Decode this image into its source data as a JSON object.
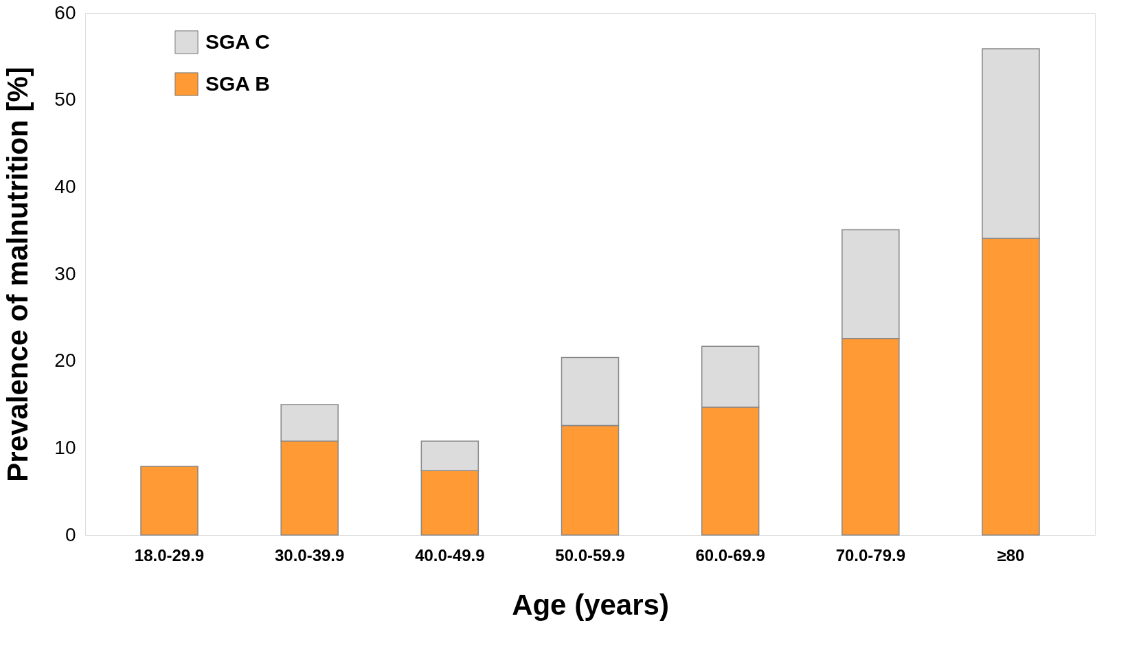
{
  "chart_data": {
    "type": "bar",
    "xlabel": "Age (years)",
    "ylabel": "Prevalence of malnutrition [%]",
    "categories": [
      "18.0-29.9",
      "30.0-39.9",
      "40.0-49.9",
      "50.0-59.9",
      "60.0-69.9",
      "70.0-79.9",
      "≥80"
    ],
    "stacked": true,
    "series": [
      {
        "name": "SGA B",
        "color": "#ff9a35",
        "values": [
          7.9,
          10.8,
          7.4,
          12.6,
          14.7,
          22.6,
          34.1
        ]
      },
      {
        "name": "SGA C",
        "color": "#dcdcdc",
        "values": [
          null,
          4.2,
          3.4,
          7.8,
          7.0,
          12.5,
          21.8
        ]
      }
    ],
    "ylim": [
      0,
      60
    ],
    "yticks": [
      0,
      10,
      20,
      30,
      40,
      50,
      60
    ],
    "grid": false,
    "legend": "top left"
  }
}
